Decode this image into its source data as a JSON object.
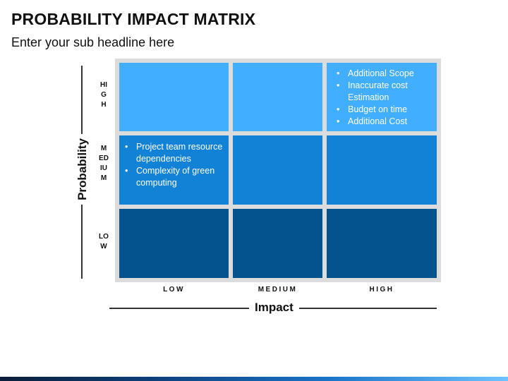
{
  "header": {
    "title": "PROBABILITY IMPACT MATRIX",
    "subtitle": "Enter your sub headline here"
  },
  "axes": {
    "y_label": "Probability",
    "x_label": "Impact",
    "y_levels": [
      "HIGH",
      "MEDIUM",
      "LOW"
    ],
    "x_levels": [
      "LOW",
      "MEDIUM",
      "HIGH"
    ]
  },
  "colors": {
    "high_row": "#42aeff",
    "medium_row": "#1282d6",
    "low_row": "#04528e",
    "grid_background": "#dcdcdc"
  },
  "cells": {
    "high_high": [
      "Additional Scope",
      "Inaccurate cost Estimation",
      "Budget on time",
      "Additional Cost"
    ],
    "medium_low": [
      "Project team resource dependencies",
      "Complexity of green computing"
    ]
  }
}
